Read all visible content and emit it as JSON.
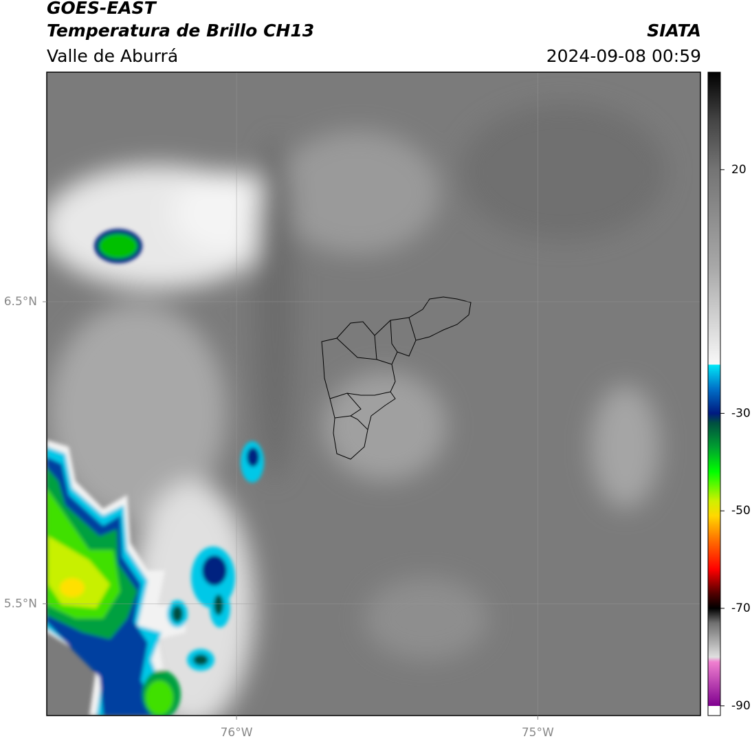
{
  "header": {
    "title": "GOES-EAST",
    "subtitle": "Temperatura de Brillo CH13",
    "region": "Valle de Aburrá",
    "source": "SIATA",
    "datetime": "2024-09-08 00:59"
  },
  "map": {
    "xlim": [
      -76.63,
      -74.46
    ],
    "ylim": [
      5.13,
      7.26
    ],
    "xticks": [
      {
        "value": -76,
        "label": "76°W"
      },
      {
        "value": -75,
        "label": "75°W"
      }
    ],
    "yticks": [
      {
        "value": 6.5,
        "label": "6.5°N"
      },
      {
        "value": 5.5,
        "label": "5.5°N"
      }
    ],
    "grid": true
  },
  "colorbar": {
    "lim": [
      -92,
      40
    ],
    "ticks": [
      20,
      -30,
      -50,
      -70,
      -90
    ],
    "colors": [
      {
        "value": 40,
        "color": "#000000"
      },
      {
        "value": 30,
        "color": "#454545"
      },
      {
        "value": 20,
        "color": "#747474"
      },
      {
        "value": 0,
        "color": "#a8a8a8"
      },
      {
        "value": -20,
        "color": "#f8f8f8"
      },
      {
        "value": -20,
        "color": "#00e8f8"
      },
      {
        "value": -25,
        "color": "#0070c8"
      },
      {
        "value": -30,
        "color": "#001a80"
      },
      {
        "value": -32,
        "color": "#005040"
      },
      {
        "value": -37,
        "color": "#00a030"
      },
      {
        "value": -42,
        "color": "#00ff00"
      },
      {
        "value": -48,
        "color": "#d0f000"
      },
      {
        "value": -51,
        "color": "#ffd800"
      },
      {
        "value": -56,
        "color": "#ff7000"
      },
      {
        "value": -62,
        "color": "#ff0000"
      },
      {
        "value": -67,
        "color": "#500000"
      },
      {
        "value": -70,
        "color": "#000000"
      },
      {
        "value": -73,
        "color": "#707070"
      },
      {
        "value": -80,
        "color": "#e0e0e0"
      },
      {
        "value": -81,
        "color": "#f080d0"
      },
      {
        "value": -90,
        "color": "#800090"
      },
      {
        "value": -90,
        "color": "#ffffff"
      },
      {
        "value": -92,
        "color": "#ffffff"
      }
    ]
  }
}
